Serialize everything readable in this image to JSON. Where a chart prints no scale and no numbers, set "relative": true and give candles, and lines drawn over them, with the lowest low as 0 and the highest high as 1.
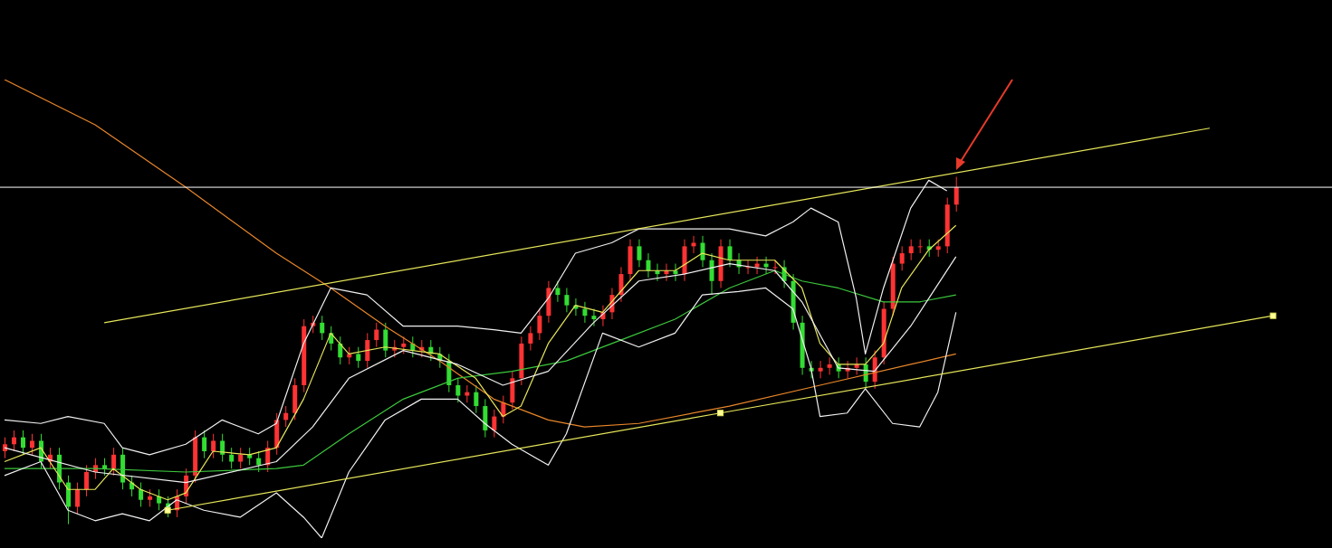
{
  "chart_data": {
    "type": "candlestick",
    "relative": true,
    "categories": [
      null,
      null,
      null,
      null,
      null,
      null,
      null,
      null,
      null,
      null,
      null,
      null,
      null,
      null,
      null,
      null,
      null,
      null,
      null,
      null,
      null,
      null,
      null,
      null,
      null,
      null,
      null,
      null,
      null,
      null,
      null,
      null,
      null,
      null,
      null,
      null,
      null,
      null,
      null,
      null,
      null,
      null,
      null,
      null,
      null,
      null,
      null,
      null,
      null,
      null,
      null,
      null,
      null,
      null,
      null,
      null,
      null,
      null,
      null,
      null,
      null,
      null,
      null,
      null,
      null,
      null,
      null,
      null,
      null,
      null,
      null,
      null,
      null,
      null,
      null,
      null,
      null,
      null,
      null,
      null,
      null,
      null,
      null,
      null,
      null,
      null,
      null,
      null,
      null,
      null,
      null,
      null,
      null,
      null,
      null,
      null,
      null,
      null,
      null,
      null,
      null,
      null,
      null,
      null,
      null,
      null,
      null,
      null,
      null,
      null,
      null,
      null,
      null,
      null,
      null,
      null,
      null,
      null,
      null,
      null,
      null,
      null,
      null,
      null,
      null,
      null,
      null,
      null,
      null,
      null,
      null,
      null,
      null,
      null,
      null,
      null,
      null,
      null,
      null,
      null,
      null,
      null,
      null,
      null,
      null,
      null,
      null
    ],
    "ohlc": [
      [
        0.21,
        0.25,
        0.19,
        0.23
      ],
      [
        0.23,
        0.27,
        0.21,
        0.25
      ],
      [
        0.25,
        0.27,
        0.2,
        0.22
      ],
      [
        0.22,
        0.26,
        0.2,
        0.24
      ],
      [
        0.24,
        0.26,
        0.16,
        0.18
      ],
      [
        0.18,
        0.22,
        0.16,
        0.2
      ],
      [
        0.2,
        0.22,
        0.1,
        0.12
      ],
      [
        0.12,
        0.14,
        0,
        0.05
      ],
      [
        0.05,
        0.12,
        0.03,
        0.1
      ],
      [
        0.1,
        0.17,
        0.08,
        0.15
      ],
      [
        0.15,
        0.19,
        0.13,
        0.17
      ],
      [
        0.17,
        0.19,
        0.14,
        0.16
      ],
      [
        0.16,
        0.22,
        0.14,
        0.2
      ],
      [
        0.2,
        0.22,
        0.1,
        0.12
      ],
      [
        0.12,
        0.14,
        0.08,
        0.1
      ],
      [
        0.1,
        0.12,
        0.05,
        0.07
      ],
      [
        0.07,
        0.1,
        0.05,
        0.08
      ],
      [
        0.08,
        0.1,
        0.04,
        0.06
      ],
      [
        0.06,
        0.08,
        0.02,
        0.04
      ],
      [
        0.04,
        0.1,
        0.02,
        0.08
      ],
      [
        0.08,
        0.16,
        0.06,
        0.14
      ],
      [
        0.14,
        0.27,
        0.12,
        0.25
      ],
      [
        0.25,
        0.27,
        0.19,
        0.21
      ],
      [
        0.21,
        0.26,
        0.19,
        0.24
      ],
      [
        0.24,
        0.26,
        0.18,
        0.2
      ],
      [
        0.2,
        0.22,
        0.16,
        0.18
      ],
      [
        0.18,
        0.22,
        0.16,
        0.2
      ],
      [
        0.2,
        0.22,
        0.17,
        0.19
      ],
      [
        0.19,
        0.21,
        0.15,
        0.17
      ],
      [
        0.17,
        0.24,
        0.15,
        0.22
      ],
      [
        0.22,
        0.32,
        0.2,
        0.3
      ],
      [
        0.3,
        0.34,
        0.28,
        0.32
      ],
      [
        0.32,
        0.42,
        0.3,
        0.4
      ],
      [
        0.4,
        0.59,
        0.38,
        0.57
      ],
      [
        0.57,
        0.6,
        0.55,
        0.58
      ],
      [
        0.58,
        0.6,
        0.53,
        0.55
      ],
      [
        0.55,
        0.57,
        0.5,
        0.52
      ],
      [
        0.52,
        0.54,
        0.46,
        0.48
      ],
      [
        0.48,
        0.51,
        0.46,
        0.49
      ],
      [
        0.49,
        0.51,
        0.45,
        0.47
      ],
      [
        0.47,
        0.55,
        0.45,
        0.53
      ],
      [
        0.53,
        0.58,
        0.51,
        0.56
      ],
      [
        0.56,
        0.58,
        0.48,
        0.5
      ],
      [
        0.5,
        0.53,
        0.48,
        0.51
      ],
      [
        0.51,
        0.54,
        0.49,
        0.52
      ],
      [
        0.52,
        0.54,
        0.48,
        0.5
      ],
      [
        0.5,
        0.53,
        0.48,
        0.51
      ],
      [
        0.51,
        0.53,
        0.47,
        0.49
      ],
      [
        0.49,
        0.51,
        0.45,
        0.47
      ],
      [
        0.47,
        0.49,
        0.38,
        0.4
      ],
      [
        0.4,
        0.42,
        0.35,
        0.37
      ],
      [
        0.37,
        0.4,
        0.35,
        0.38
      ],
      [
        0.38,
        0.4,
        0.32,
        0.34
      ],
      [
        0.34,
        0.36,
        0.25,
        0.27
      ],
      [
        0.27,
        0.33,
        0.25,
        0.31
      ],
      [
        0.31,
        0.37,
        0.29,
        0.35
      ],
      [
        0.35,
        0.44,
        0.33,
        0.42
      ],
      [
        0.42,
        0.54,
        0.4,
        0.52
      ],
      [
        0.52,
        0.57,
        0.5,
        0.55
      ],
      [
        0.55,
        0.62,
        0.53,
        0.6
      ],
      [
        0.6,
        0.7,
        0.58,
        0.68
      ],
      [
        0.68,
        0.7,
        0.64,
        0.66
      ],
      [
        0.66,
        0.68,
        0.61,
        0.63
      ],
      [
        0.63,
        0.65,
        0.6,
        0.62
      ],
      [
        0.62,
        0.64,
        0.58,
        0.6
      ],
      [
        0.6,
        0.62,
        0.57,
        0.59
      ],
      [
        0.59,
        0.63,
        0.57,
        0.61
      ],
      [
        0.61,
        0.68,
        0.59,
        0.66
      ],
      [
        0.66,
        0.74,
        0.64,
        0.72
      ],
      [
        0.72,
        0.82,
        0.7,
        0.8
      ],
      [
        0.8,
        0.82,
        0.74,
        0.76
      ],
      [
        0.76,
        0.78,
        0.71,
        0.73
      ],
      [
        0.73,
        0.75,
        0.7,
        0.72
      ],
      [
        0.72,
        0.75,
        0.7,
        0.73
      ],
      [
        0.73,
        0.75,
        0.7,
        0.72
      ],
      [
        0.72,
        0.82,
        0.7,
        0.8
      ],
      [
        0.8,
        0.83,
        0.78,
        0.81
      ],
      [
        0.81,
        0.83,
        0.74,
        0.76
      ],
      [
        0.76,
        0.78,
        0.66,
        0.7
      ],
      [
        0.7,
        0.82,
        0.68,
        0.8
      ],
      [
        0.8,
        0.82,
        0.74,
        0.76
      ],
      [
        0.76,
        0.78,
        0.72,
        0.74
      ],
      [
        0.74,
        0.76,
        0.72,
        0.74
      ],
      [
        0.74,
        0.77,
        0.72,
        0.75
      ],
      [
        0.75,
        0.77,
        0.72,
        0.74
      ],
      [
        0.74,
        0.76,
        0.72,
        0.74
      ],
      [
        0.74,
        0.76,
        0.68,
        0.7
      ],
      [
        0.7,
        0.72,
        0.56,
        0.58
      ],
      [
        0.58,
        0.6,
        0.43,
        0.45
      ],
      [
        0.45,
        0.47,
        0.42,
        0.44
      ],
      [
        0.44,
        0.47,
        0.42,
        0.45
      ],
      [
        0.45,
        0.48,
        0.43,
        0.46
      ],
      [
        0.46,
        0.48,
        0.42,
        0.44
      ],
      [
        0.44,
        0.47,
        0.42,
        0.45
      ],
      [
        0.45,
        0.48,
        0.43,
        0.46
      ],
      [
        0.46,
        0.48,
        0.39,
        0.41
      ],
      [
        0.41,
        0.5,
        0.39,
        0.48
      ],
      [
        0.48,
        0.64,
        0.46,
        0.62
      ],
      [
        0.62,
        0.77,
        0.6,
        0.75
      ],
      [
        0.75,
        0.8,
        0.73,
        0.78
      ],
      [
        0.78,
        0.82,
        0.76,
        0.8
      ],
      [
        0.8,
        0.82,
        0.78,
        0.8
      ],
      [
        0.8,
        0.82,
        0.77,
        0.79
      ],
      [
        0.79,
        0.82,
        0.77,
        0.8
      ],
      [
        0.8,
        0.94,
        0.78,
        0.92
      ],
      [
        0.92,
        1.0,
        0.9,
        0.97
      ],
      null,
      null,
      null,
      null,
      null,
      null,
      null,
      null,
      null,
      null,
      null,
      null,
      null,
      null,
      null,
      null,
      null,
      null,
      null,
      null,
      null,
      null,
      null,
      null,
      null,
      null,
      null,
      null,
      null,
      null,
      null,
      null,
      null,
      null,
      null,
      null,
      null,
      null,
      null,
      null,
      null
    ],
    "colors": [
      "#ff3333",
      "#ff3333",
      "#33dd33",
      "#ff3333",
      "#33dd33",
      "#ff3333",
      "#33dd33",
      "#33dd33",
      "#ff3333",
      "#ff3333",
      "#ff3333",
      "#33dd33",
      "#ff3333",
      "#33dd33",
      "#33dd33",
      "#33dd33",
      "#ff3333",
      "#33dd33",
      "#33dd33",
      "#ff3333",
      "#ff3333",
      "#ff3333",
      "#33dd33",
      "#ff3333",
      "#33dd33",
      "#33dd33",
      "#ff3333",
      "#33dd33",
      "#33dd33",
      "#ff3333",
      "#ff3333",
      "#ff3333",
      "#ff3333",
      "#ff3333",
      "#ff3333",
      "#33dd33",
      "#33dd33",
      "#33dd33",
      "#ff3333",
      "#33dd33",
      "#ff3333",
      "#ff3333",
      "#33dd33",
      "#ff3333",
      "#ff3333",
      "#33dd33",
      "#ff3333",
      "#33dd33",
      "#33dd33",
      "#33dd33",
      "#33dd33",
      "#ff3333",
      "#33dd33",
      "#33dd33",
      "#ff3333",
      "#ff3333",
      "#ff3333",
      "#ff3333",
      "#ff3333",
      "#ff3333",
      "#ff3333",
      "#33dd33",
      "#33dd33",
      "#33dd33",
      "#33dd33",
      "#33dd33",
      "#ff3333",
      "#ff3333",
      "#ff3333",
      "#ff3333",
      "#33dd33",
      "#33dd33",
      "#33dd33",
      "#ff3333",
      "#33dd33",
      "#ff3333",
      "#ff3333",
      "#33dd33",
      "#33dd33",
      "#ff3333",
      "#33dd33",
      "#33dd33",
      "#ff3333",
      "#ff3333",
      "#33dd33",
      "#ff3333",
      "#33dd33",
      "#33dd33",
      "#33dd33",
      "#33dd33",
      "#ff3333",
      "#ff3333",
      "#33dd33",
      "#ff3333",
      "#ff3333",
      "#33dd33",
      "#ff3333",
      "#ff3333",
      "#ff3333",
      "#ff3333",
      "#ff3333",
      "#ff3333",
      "#33dd33",
      "#ff3333",
      "#ff3333",
      "#ff3333",
      null,
      null,
      null,
      null,
      null,
      null,
      null,
      null,
      null,
      null,
      null,
      null,
      null,
      null,
      null,
      null,
      null,
      null,
      null,
      null,
      null,
      null,
      null,
      null,
      null,
      null,
      null,
      null,
      null,
      null,
      null,
      null,
      null,
      null,
      null,
      null,
      null,
      null,
      null,
      null,
      null
    ],
    "series": [
      {
        "type": "line",
        "color": "#e8862a",
        "values": [
          1.28,
          null,
          null,
          null,
          null,
          null,
          null,
          null,
          null,
          null,
          1.15,
          null,
          null,
          null,
          null,
          null,
          null,
          null,
          null,
          null,
          0.97,
          null,
          null,
          null,
          null,
          null,
          null,
          null,
          null,
          null,
          0.78,
          null,
          null,
          null,
          null,
          null,
          0.68,
          null,
          null,
          null,
          null,
          null,
          0.57,
          null,
          null,
          null,
          null,
          null,
          0.47,
          null,
          null,
          null,
          null,
          null,
          0.36,
          null,
          null,
          null,
          null,
          null,
          0.3,
          null,
          null,
          null,
          0.28,
          null,
          null,
          null,
          null,
          null,
          0.29,
          null,
          null,
          null,
          null,
          null,
          null,
          null,
          null,
          null,
          0.34,
          null,
          null,
          null,
          null,
          null,
          null,
          null,
          null,
          null,
          0.4,
          null,
          null,
          null,
          null,
          null,
          null,
          null,
          null,
          null,
          0.46,
          null,
          null,
          null,
          null,
          0.49,
          null,
          null,
          null,
          null,
          null,
          null,
          null,
          null,
          null,
          null,
          null,
          null,
          null,
          null,
          null,
          null,
          null,
          null,
          null,
          null,
          null,
          null,
          null,
          null,
          null,
          null,
          null,
          null,
          null,
          null,
          null,
          null,
          null,
          null,
          null,
          null,
          null,
          null,
          null,
          null,
          null
        ]
      },
      {
        "type": "line",
        "color": "#3cc83c",
        "values": [
          0.16,
          null,
          null,
          null,
          null,
          null,
          null,
          null,
          null,
          null,
          0.16,
          null,
          null,
          null,
          null,
          null,
          null,
          null,
          null,
          null,
          0.15,
          null,
          null,
          null,
          null,
          null,
          null,
          null,
          null,
          null,
          0.16,
          null,
          null,
          0.17,
          null,
          null,
          null,
          null,
          0.26,
          null,
          null,
          null,
          null,
          null,
          0.36,
          null,
          null,
          null,
          null,
          null,
          0.42,
          null,
          null,
          null,
          null,
          null,
          0.44,
          null,
          null,
          null,
          null,
          null,
          0.47,
          null,
          null,
          null,
          null,
          null,
          0.53,
          null,
          null,
          null,
          null,
          null,
          0.59,
          null,
          null,
          null,
          null,
          null,
          0.68,
          null,
          null,
          null,
          null,
          0.73,
          null,
          null,
          0.7,
          null,
          null,
          null,
          0.68,
          null,
          null,
          null,
          null,
          0.64,
          null,
          null,
          null,
          0.64,
          null,
          null,
          null,
          0.66,
          null,
          null,
          null,
          null,
          null,
          null,
          null,
          null,
          null,
          null,
          null,
          null,
          null,
          null,
          null,
          null,
          null,
          null,
          null,
          null,
          null,
          null,
          null,
          null,
          null,
          null,
          null,
          null,
          null,
          null,
          null,
          null,
          null,
          null,
          null,
          null,
          null,
          null,
          null,
          null,
          null
        ]
      },
      {
        "type": "line",
        "color": "#e6e65a",
        "values": [
          0.18,
          null,
          null,
          null,
          0.22,
          null,
          null,
          0.1,
          null,
          null,
          0.1,
          null,
          0.16,
          null,
          null,
          0.1,
          null,
          null,
          0.07,
          null,
          0.09,
          null,
          null,
          0.21,
          null,
          null,
          null,
          0.2,
          null,
          null,
          0.22,
          null,
          null,
          0.36,
          null,
          null,
          0.55,
          null,
          0.49,
          null,
          null,
          null,
          0.51,
          null,
          null,
          null,
          null,
          null,
          0.49,
          null,
          null,
          null,
          0.42,
          null,
          null,
          0.31,
          null,
          0.34,
          null,
          null,
          0.52,
          null,
          null,
          0.63,
          null,
          null,
          0.61,
          null,
          null,
          null,
          0.73,
          null,
          null,
          null,
          0.73,
          null,
          null,
          0.78,
          null,
          null,
          0.76,
          null,
          null,
          null,
          null,
          0.76,
          null,
          null,
          0.68,
          null,
          0.52,
          null,
          0.46,
          null,
          null,
          0.46,
          null,
          0.52,
          null,
          0.68,
          null,
          null,
          0.79,
          null,
          null,
          0.86,
          null,
          null,
          null,
          null,
          null,
          null,
          null,
          null,
          null,
          null,
          null,
          null,
          null,
          null,
          null,
          null,
          null,
          null,
          null,
          null,
          null,
          null,
          null,
          null,
          null,
          null,
          null,
          null,
          null,
          null,
          null,
          null,
          null,
          null,
          null,
          null,
          null,
          null,
          null,
          null,
          null
        ]
      },
      {
        "type": "line",
        "color": "#f0f0f0",
        "values": [
          0.3,
          null,
          null,
          null,
          0.29,
          null,
          null,
          0.31,
          null,
          null,
          null,
          0.29,
          null,
          0.22,
          null,
          null,
          0.2,
          null,
          null,
          null,
          0.23,
          null,
          null,
          null,
          0.3,
          null,
          null,
          null,
          0.26,
          null,
          0.29,
          null,
          null,
          0.52,
          null,
          null,
          0.68,
          null,
          null,
          null,
          0.66,
          null,
          null,
          null,
          0.57,
          null,
          null,
          null,
          null,
          null,
          0.57,
          null,
          null,
          null,
          0.56,
          null,
          null,
          0.55,
          null,
          null,
          0.65,
          null,
          null,
          0.78,
          null,
          null,
          null,
          0.81,
          null,
          null,
          0.85,
          null,
          null,
          null,
          null,
          null,
          0.85,
          null,
          null,
          null,
          0.85,
          null,
          null,
          null,
          0.83,
          null,
          null,
          0.87,
          null,
          0.91,
          null,
          null,
          0.87,
          null,
          0.65,
          0.49,
          null,
          0.68,
          null,
          null,
          0.91,
          null,
          0.99,
          null,
          0.96,
          null,
          null,
          null,
          null,
          null,
          null,
          null,
          null,
          null,
          null,
          null,
          null,
          null,
          null,
          null,
          null,
          null,
          null,
          null,
          null,
          null,
          null,
          null,
          null,
          null,
          null,
          null,
          null,
          null,
          null,
          null,
          null,
          null,
          null,
          null,
          null,
          null,
          null,
          null,
          null,
          null,
          null
        ]
      },
      {
        "type": "line",
        "color": "#f0f0f0",
        "values": [
          0.22,
          null,
          null,
          null,
          null,
          null,
          null,
          null,
          null,
          null,
          0.15,
          null,
          null,
          null,
          null,
          null,
          null,
          null,
          null,
          null,
          0.12,
          null,
          null,
          null,
          null,
          null,
          null,
          null,
          null,
          null,
          0.18,
          null,
          null,
          null,
          0.28,
          null,
          null,
          null,
          0.42,
          null,
          null,
          null,
          null,
          null,
          0.5,
          null,
          null,
          null,
          null,
          null,
          0.46,
          null,
          null,
          null,
          null,
          0.4,
          null,
          null,
          null,
          null,
          0.44,
          null,
          null,
          null,
          null,
          0.58,
          null,
          null,
          null,
          null,
          0.7,
          null,
          null,
          null,
          null,
          0.72,
          null,
          null,
          null,
          null,
          0.75,
          null,
          null,
          null,
          null,
          0.73,
          null,
          null,
          0.64,
          null,
          null,
          null,
          0.45,
          null,
          null,
          null,
          0.44,
          null,
          null,
          null,
          0.57,
          null,
          null,
          null,
          null,
          0.77,
          null,
          null,
          null,
          null,
          null,
          null,
          null,
          null,
          null,
          null,
          null,
          null,
          null,
          null,
          null,
          null,
          null,
          null,
          null,
          null,
          null,
          null,
          null,
          null,
          null,
          null,
          null,
          null,
          null,
          null,
          null,
          null,
          null,
          null,
          null,
          null,
          null,
          null,
          null,
          null,
          null
        ]
      },
      {
        "type": "line",
        "color": "#f0f0f0",
        "values": [
          0.14,
          null,
          null,
          null,
          0.18,
          null,
          null,
          0.04,
          null,
          null,
          0.01,
          null,
          null,
          0.03,
          null,
          null,
          0.01,
          null,
          null,
          0.07,
          null,
          null,
          0.04,
          null,
          null,
          null,
          0.02,
          null,
          null,
          null,
          0.09,
          null,
          null,
          0.02,
          null,
          -0.04,
          null,
          null,
          0.15,
          null,
          null,
          null,
          0.3,
          null,
          null,
          null,
          0.36,
          null,
          null,
          null,
          0.36,
          null,
          null,
          0.29,
          null,
          null,
          0.23,
          null,
          null,
          null,
          0.17,
          null,
          0.26,
          null,
          null,
          null,
          0.55,
          null,
          null,
          null,
          0.51,
          null,
          null,
          null,
          0.55,
          null,
          null,
          0.66,
          null,
          null,
          null,
          0.67,
          null,
          null,
          0.68,
          null,
          null,
          0.62,
          null,
          0.45,
          0.31,
          null,
          null,
          0.32,
          null,
          0.39,
          null,
          null,
          0.29,
          null,
          null,
          0.28,
          null,
          0.38,
          null,
          0.61,
          null,
          null,
          null,
          null,
          null,
          null,
          null,
          null,
          null,
          null,
          null,
          null,
          null,
          null,
          null,
          null,
          null,
          null,
          null,
          null,
          null,
          null,
          null,
          null,
          null,
          null,
          null,
          null,
          null,
          null,
          null,
          null,
          null,
          null,
          null,
          null,
          null,
          null,
          null,
          null,
          null
        ]
      },
      {
        "type": "line",
        "color": "#e6e65a",
        "values": [
          null,
          null,
          null,
          null,
          null,
          null,
          null,
          null,
          null,
          null,
          null,
          0.58,
          null,
          null,
          null,
          null,
          null,
          null,
          null,
          null,
          null,
          null,
          null,
          null,
          null,
          null,
          null,
          null,
          null,
          null,
          null,
          null,
          null,
          null,
          null,
          null,
          null,
          null,
          null,
          null,
          null,
          null,
          null,
          null,
          null,
          null,
          null,
          null,
          null,
          null,
          null,
          null,
          null,
          null,
          null,
          null,
          null,
          null,
          null,
          null,
          null,
          null,
          null,
          null,
          null,
          null,
          null,
          null,
          null,
          null,
          null,
          null,
          null,
          null,
          null,
          null,
          null,
          null,
          null,
          null,
          null,
          null,
          null,
          null,
          null,
          null,
          null,
          null,
          null,
          null,
          null,
          null,
          null,
          null,
          null,
          null,
          null,
          null,
          null,
          null,
          null,
          null,
          null,
          null,
          null,
          null,
          null,
          null,
          null,
          null,
          null,
          null,
          null,
          null,
          null,
          null,
          null,
          null,
          null,
          null,
          null,
          null,
          null,
          null,
          null,
          null,
          null,
          null,
          null,
          null,
          null,
          null,
          null,
          1.14,
          null,
          null,
          null,
          null,
          null,
          null,
          null,
          null,
          null,
          null,
          null,
          null,
          null
        ]
      },
      {
        "type": "line",
        "color": "#e6e65a",
        "marker": "square",
        "values": [
          null,
          null,
          null,
          null,
          null,
          null,
          null,
          null,
          null,
          null,
          null,
          null,
          null,
          null,
          null,
          null,
          null,
          null,
          0.04,
          null,
          null,
          null,
          null,
          null,
          null,
          null,
          null,
          null,
          null,
          null,
          null,
          null,
          null,
          null,
          null,
          null,
          null,
          null,
          null,
          null,
          null,
          null,
          null,
          null,
          null,
          null,
          null,
          null,
          null,
          null,
          null,
          null,
          null,
          null,
          null,
          null,
          null,
          null,
          null,
          null,
          null,
          null,
          null,
          null,
          null,
          null,
          null,
          null,
          null,
          null,
          null,
          null,
          null,
          null,
          null,
          null,
          null,
          null,
          null,
          0.32,
          null,
          null,
          null,
          null,
          null,
          null,
          null,
          null,
          null,
          null,
          null,
          null,
          null,
          null,
          null,
          null,
          null,
          null,
          null,
          null,
          null,
          null,
          null,
          null,
          null,
          null,
          null,
          null,
          null,
          null,
          null,
          null,
          null,
          null,
          null,
          null,
          null,
          null,
          null,
          null,
          null,
          null,
          null,
          null,
          null,
          null,
          null,
          null,
          null,
          null,
          null,
          null,
          null,
          null,
          null,
          null,
          null,
          null,
          null,
          null,
          0.6,
          null,
          null,
          null,
          null,
          null,
          null
        ]
      }
    ],
    "ref_lines": [
      {
        "axis": "y",
        "value": 0.97,
        "color": "#ffffff"
      }
    ]
  }
}
